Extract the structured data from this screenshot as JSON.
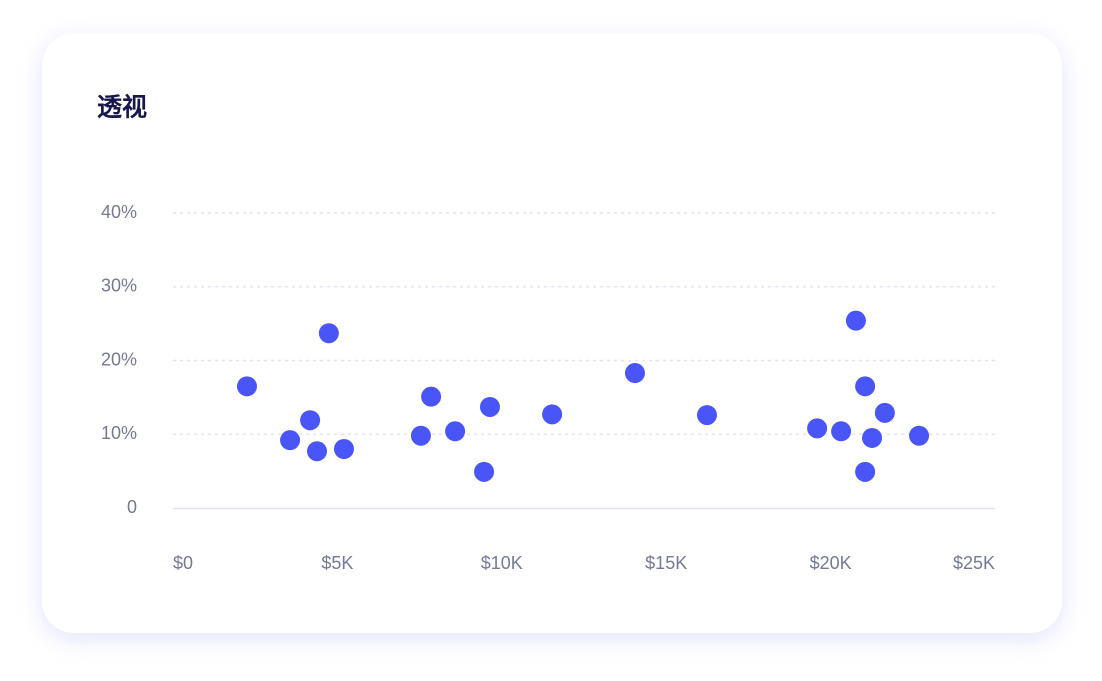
{
  "chart_data": {
    "type": "scatter",
    "title": "透视",
    "x": [
      2250,
      3560,
      4170,
      4380,
      4740,
      5200,
      7540,
      7850,
      8580,
      9460,
      9640,
      11530,
      14050,
      16240,
      19590,
      20320,
      20770,
      21050,
      21050,
      21260,
      21650,
      22690
    ],
    "values": [
      16.5,
      9.2,
      11.9,
      7.7,
      23.7,
      8.0,
      9.8,
      15.1,
      10.4,
      4.9,
      13.7,
      12.7,
      18.3,
      12.6,
      10.8,
      10.4,
      25.4,
      16.5,
      4.9,
      9.5,
      12.9,
      9.8
    ],
    "color": "#4a55f7",
    "xlim": [
      0,
      25000
    ],
    "xticks": [
      {
        "value": 0,
        "label": "$0"
      },
      {
        "value": 5000,
        "label": "$5K"
      },
      {
        "value": 10000,
        "label": "$10K"
      },
      {
        "value": 15000,
        "label": "$15K"
      },
      {
        "value": 20000,
        "label": "$20K"
      },
      {
        "value": 25000,
        "label": "$25K"
      }
    ],
    "ylim": [
      0,
      40
    ],
    "yticks": [
      0,
      {
        "value": 10,
        "label": "10%"
      },
      {
        "value": 20,
        "label": "20%"
      },
      {
        "value": 30,
        "label": "30%"
      },
      {
        "value": 40,
        "label": "40%"
      }
    ],
    "grid": true
  }
}
